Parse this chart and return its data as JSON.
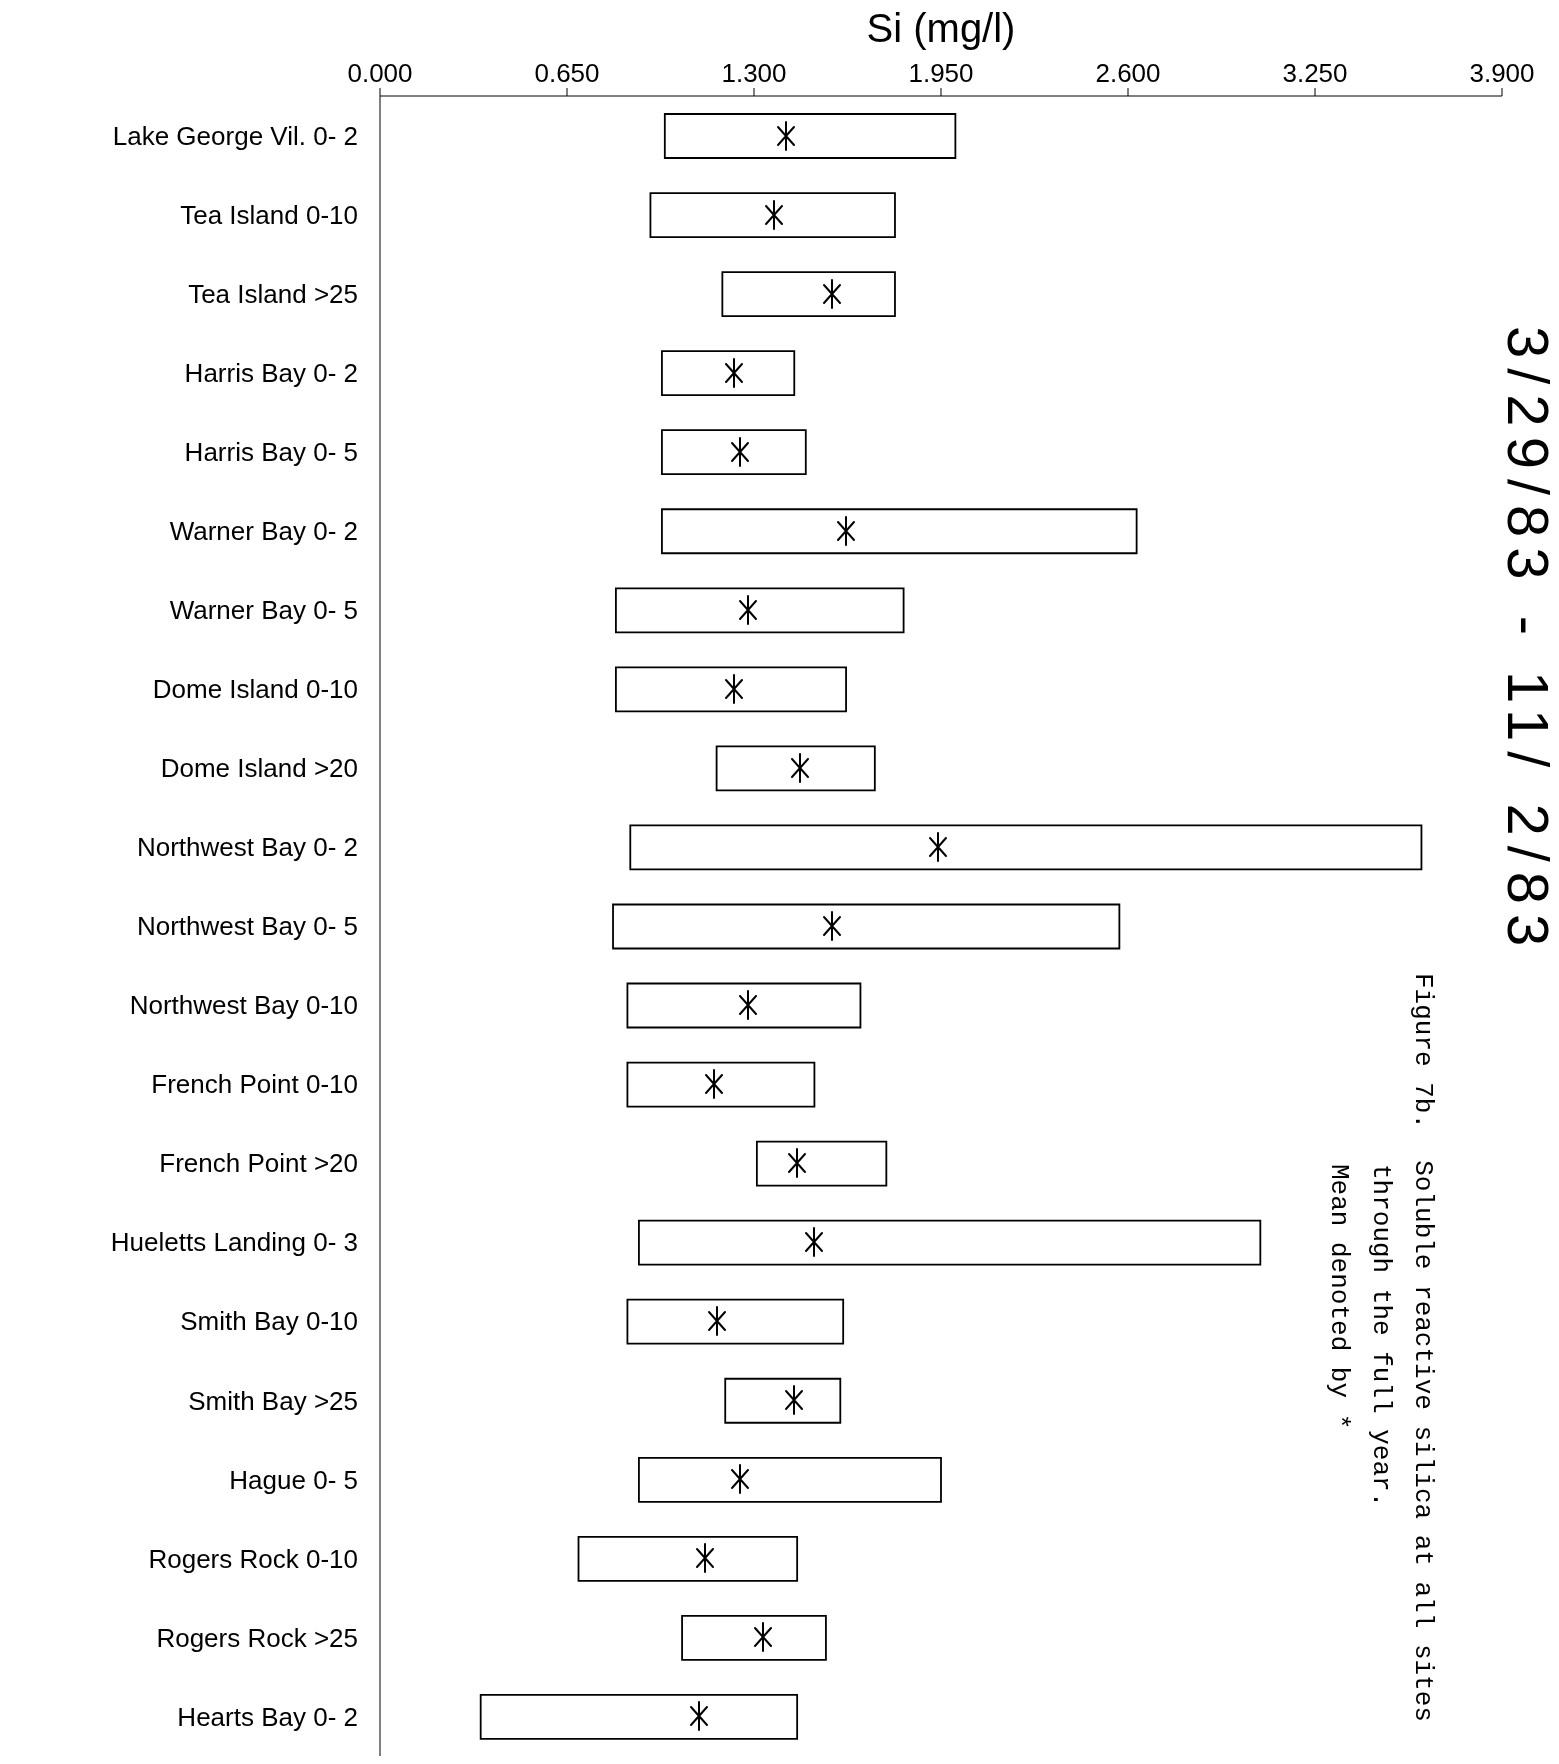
{
  "chart_data": {
    "type": "bar",
    "orientation": "horizontal",
    "xlabel": "Si (mg/l)",
    "subtitle": "3/29/83 - 11/ 2/83",
    "annotations": [
      "Figure 7b.  Soluble reactive silica at all sites\nthrough the full year.\nMean denoted by *"
    ],
    "categories": [
      "Lake George Vil. 0- 2",
      "Tea Island 0-10",
      "Tea Island >25",
      "Harris Bay 0- 2",
      "Harris Bay 0- 5",
      "Warner Bay 0- 2",
      "Warner Bay 0- 5",
      "Dome Island 0-10",
      "Dome Island >20",
      "Northwest Bay 0- 2",
      "Northwest Bay 0- 5",
      "Northwest Bay 0-10",
      "French Point 0-10",
      "French Point >20",
      "Hueletts Landing 0- 3",
      "Smith Bay 0-10",
      "Smith Bay >25",
      "Hague 0- 5",
      "Rogers Rock 0-10",
      "Rogers Rock >25",
      "Hearts Bay 0- 2"
    ],
    "xlim": [
      0,
      3.9
    ],
    "xticks": [
      {
        "value": 0,
        "label": "0.000"
      },
      {
        "value": 0.65,
        "label": "0.650"
      },
      {
        "value": 1.3,
        "label": "1.300"
      },
      {
        "value": 1.95,
        "label": "1.950"
      },
      {
        "value": 2.6,
        "label": "2.600"
      },
      {
        "value": 3.25,
        "label": "3.250"
      },
      {
        "value": 3.9,
        "label": "3.900"
      }
    ],
    "series": [
      {
        "color": "#000000",
        "base": [
          0.99,
          0.94,
          1.19,
          0.98,
          0.98,
          0.98,
          0.82,
          0.82,
          1.17,
          0.87,
          0.81,
          0.86,
          0.86,
          1.31,
          0.9,
          0.86,
          1.2,
          0.9,
          0.69,
          1.05,
          0.35
        ],
        "values": [
          1.01,
          0.85,
          0.6,
          0.46,
          0.5,
          1.65,
          1.0,
          0.8,
          0.55,
          2.75,
          1.76,
          0.81,
          0.65,
          0.45,
          2.16,
          0.75,
          0.4,
          1.05,
          0.76,
          0.5,
          1.1
        ]
      },
      {
        "type": "scatter",
        "color": "#000000",
        "marker": "cross",
        "x": [
          "Lake George Vil. 0- 2",
          "Tea Island 0-10",
          "Tea Island >25",
          "Harris Bay 0- 2",
          "Harris Bay 0- 5",
          "Warner Bay 0- 2",
          "Warner Bay 0- 5",
          "Dome Island 0-10",
          "Dome Island >20",
          "Northwest Bay 0- 2",
          "Northwest Bay 0- 5",
          "Northwest Bay 0-10",
          "French Point 0-10",
          "French Point >20",
          "Hueletts Landing 0- 3",
          "Smith Bay 0-10",
          "Smith Bay >25",
          "Hague 0- 5",
          "Rogers Rock 0-10",
          "Rogers Rock >25",
          "Hearts Bay 0- 2"
        ],
        "values": [
          1.41,
          1.37,
          1.57,
          1.23,
          1.25,
          1.62,
          1.28,
          1.23,
          1.46,
          1.94,
          1.57,
          1.28,
          1.16,
          1.45,
          1.51,
          1.17,
          1.44,
          1.25,
          1.13,
          1.33,
          1.11
        ]
      }
    ]
  }
}
